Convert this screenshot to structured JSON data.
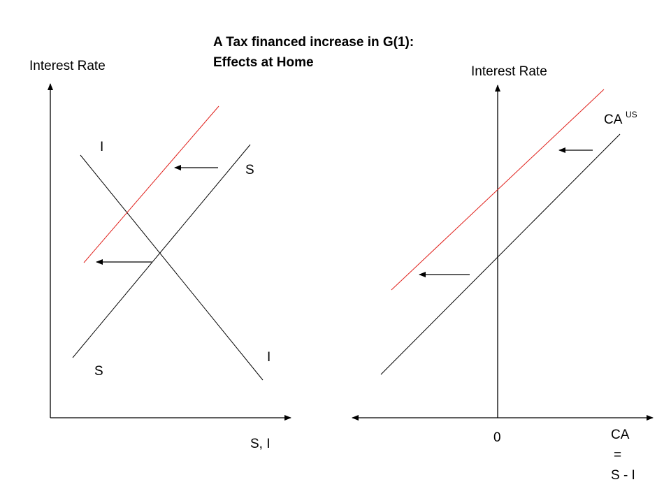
{
  "title": {
    "line1": "A Tax financed increase in G(1):",
    "line2": "Effects at Home"
  },
  "left_panel": {
    "y_axis_label": "Interest Rate",
    "x_axis_label": "S, I",
    "investment_label_top": "I",
    "investment_label_bottom": "I",
    "saving_label_top": "S",
    "saving_label_bottom": "S"
  },
  "right_panel": {
    "y_axis_label": "Interest Rate",
    "curve_label": "CA",
    "curve_label_sup": "US",
    "origin_label": "0",
    "x_axis_label_line1": "CA",
    "x_axis_label_line2": "=",
    "x_axis_label_line3": "S - I"
  },
  "colors": {
    "original_curve": "#000000",
    "shifted_curve": "#e0201b",
    "axes": "#000000"
  }
}
